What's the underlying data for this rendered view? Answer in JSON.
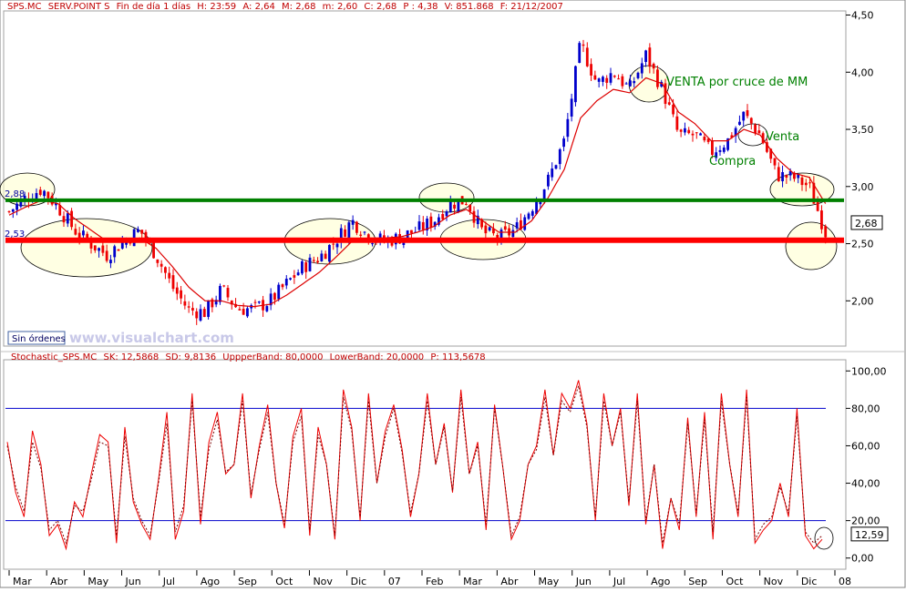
{
  "header": {
    "ticker": "SPS.MC",
    "name": "SERV.POINT S",
    "period": "Fin de día 1 días",
    "time": "H: 23:59",
    "open": "A: 2,64",
    "high": "M: 2,68",
    "low": "m: 2,60",
    "close": "C: 2,68",
    "pct": "P : 4,38",
    "volume": "V: 851.868",
    "date": "F: 21/12/2007"
  },
  "watermark": "www.visualchart.com",
  "sin_ordenes": "Sin órdenes",
  "stoch_header": {
    "name": "Stochastic_SPS.MC",
    "sk": "SK: 12,5868",
    "sd": "SD: 9,8136",
    "upper": "UppperBand: 80,0000",
    "lower": "LowerBand: 20,0000",
    "p": "P: 113,5678"
  },
  "colors": {
    "bull_candle": "#0000cc",
    "bear_candle": "#ee0000",
    "moving_average": "#dd0000",
    "support_line": "#ff0000",
    "resistance_line": "#008000",
    "band_lines": "#0000cc",
    "annotation_fill": "#ffffcc",
    "annotation_text": "#008000"
  },
  "chart_data": [
    {
      "type": "candlestick",
      "title": "SPS.MC - SERV.POINT S",
      "y_ticks": [
        "4,50",
        "4,00",
        "3,50",
        "3,00",
        "2,50",
        "2,00"
      ],
      "ylim": [
        1.62,
        4.52
      ],
      "x_ticks": [
        "Mar",
        "Abr",
        "May",
        "Jun",
        "Jul",
        "Ago",
        "Sep",
        "Oct",
        "Nov",
        "Dic",
        "07",
        "Feb",
        "Mar",
        "Abr",
        "May",
        "Jun",
        "Jul",
        "Ago",
        "Sep",
        "Oct",
        "Nov",
        "Dic",
        "08"
      ],
      "close_approx": [
        2.78,
        2.9,
        2.98,
        2.82,
        2.62,
        2.5,
        2.4,
        2.52,
        2.62,
        2.4,
        2.12,
        1.92,
        1.9,
        2.1,
        1.93,
        1.93,
        2.0,
        2.15,
        2.3,
        2.38,
        2.53,
        2.7,
        2.57,
        2.52,
        2.56,
        2.62,
        2.7,
        2.85,
        2.88,
        2.6,
        2.55,
        2.62,
        2.82,
        3.05,
        3.4,
        4.25,
        3.9,
        4.0,
        3.85,
        4.15,
        3.85,
        3.45,
        3.45,
        3.3,
        3.4,
        3.63,
        3.45,
        3.1,
        3.08,
        3.0,
        2.6
      ],
      "moving_average_approx": [
        2.75,
        2.82,
        2.88,
        2.85,
        2.72,
        2.62,
        2.52,
        2.52,
        2.55,
        2.46,
        2.3,
        2.12,
        2.0,
        2.0,
        1.96,
        1.95,
        1.97,
        2.05,
        2.15,
        2.25,
        2.38,
        2.52,
        2.55,
        2.55,
        2.56,
        2.6,
        2.65,
        2.75,
        2.8,
        2.7,
        2.6,
        2.6,
        2.7,
        2.9,
        3.15,
        3.6,
        3.75,
        3.85,
        3.82,
        3.95,
        3.9,
        3.65,
        3.55,
        3.4,
        3.4,
        3.5,
        3.45,
        3.25,
        3.12,
        3.08,
        2.85
      ],
      "last_price_label": "2,68",
      "levels": [
        {
          "value": 2.88,
          "label": "2,88",
          "color": "#008000"
        },
        {
          "value": 2.53,
          "label": "2,53",
          "color": "#ff0000"
        }
      ],
      "annotations": [
        "VENTA por cruce de MM",
        "Venta",
        "Compra"
      ],
      "grid": false
    },
    {
      "type": "line",
      "title": "Stochastic_SPS.MC",
      "y_ticks": [
        "100,00",
        "80,00",
        "60,00",
        "40,00",
        "20,00",
        "0,00"
      ],
      "ylim": [
        -5,
        105
      ],
      "bands": [
        80,
        20
      ],
      "last_value_label": "12,59",
      "series": [
        {
          "name": "SK",
          "style": "solid",
          "values": [
            62,
            35,
            22,
            68,
            50,
            12,
            18,
            5,
            30,
            22,
            45,
            66,
            62,
            8,
            70,
            30,
            18,
            10,
            42,
            78,
            10,
            25,
            88,
            18,
            62,
            78,
            45,
            50,
            88,
            32,
            60,
            82,
            40,
            16,
            65,
            80,
            12,
            70,
            50,
            10,
            90,
            70,
            20,
            88,
            40,
            68,
            82,
            58,
            22,
            45,
            88,
            50,
            72,
            35,
            90,
            45,
            62,
            15,
            82,
            48,
            10,
            20,
            50,
            60,
            90,
            55,
            88,
            80,
            95,
            72,
            20,
            88,
            60,
            80,
            28,
            88,
            18,
            50,
            5,
            32,
            15,
            75,
            22,
            78,
            10,
            88,
            50,
            22,
            90,
            8,
            15,
            20,
            40,
            22,
            80,
            12,
            5,
            10
          ]
        },
        {
          "name": "SD",
          "style": "dashed",
          "values": [
            60,
            38,
            25,
            62,
            48,
            15,
            20,
            8,
            28,
            25,
            42,
            62,
            60,
            12,
            65,
            32,
            20,
            12,
            40,
            72,
            14,
            28,
            84,
            22,
            58,
            74,
            46,
            50,
            84,
            34,
            58,
            78,
            40,
            18,
            62,
            76,
            15,
            66,
            50,
            12,
            86,
            68,
            22,
            84,
            40,
            65,
            80,
            56,
            24,
            45,
            84,
            50,
            70,
            36,
            86,
            45,
            60,
            18,
            80,
            48,
            12,
            22,
            50,
            58,
            86,
            55,
            84,
            78,
            92,
            70,
            22,
            84,
            60,
            78,
            30,
            84,
            20,
            50,
            8,
            32,
            18,
            72,
            24,
            74,
            14,
            84,
            50,
            24,
            86,
            10,
            18,
            22,
            38,
            24,
            76,
            14,
            8,
            12
          ]
        }
      ],
      "grid": false
    }
  ]
}
